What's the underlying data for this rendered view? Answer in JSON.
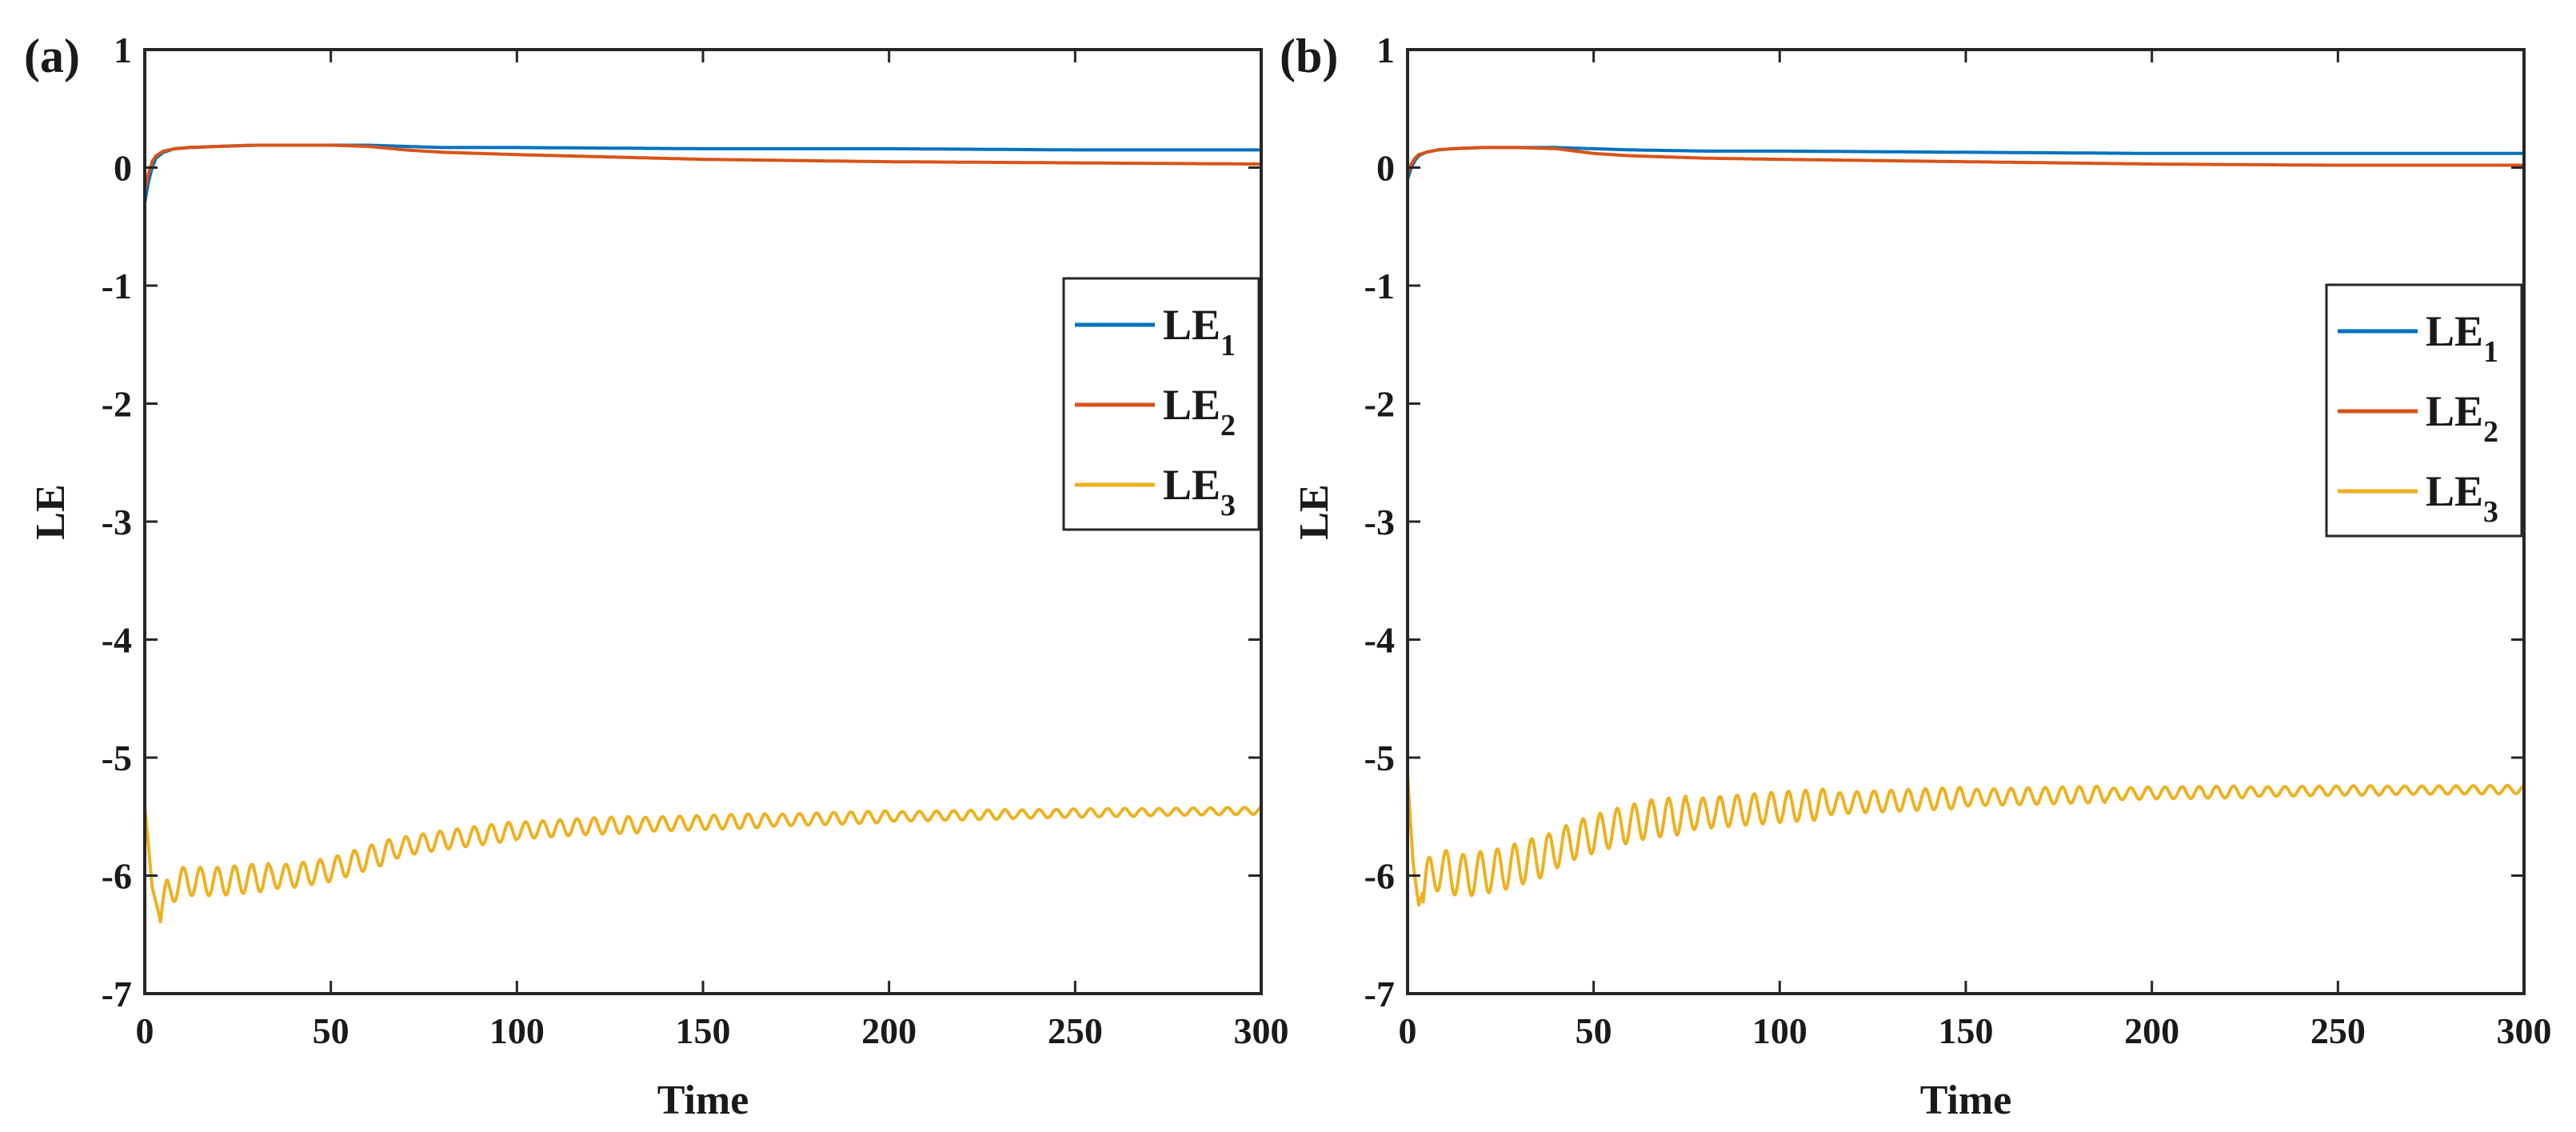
{
  "chart_data": [
    {
      "type": "line",
      "panel_label": "(a)",
      "xlabel": "Time",
      "ylabel": "LE",
      "xlim": [
        0,
        300
      ],
      "ylim": [
        -7,
        1
      ],
      "xticks": [
        0,
        50,
        100,
        150,
        200,
        250,
        300
      ],
      "yticks": [
        -7,
        -6,
        -5,
        -4,
        -3,
        -2,
        -1,
        0,
        1
      ],
      "legend_position": "right",
      "series": [
        {
          "name": "LE",
          "subscript": "1",
          "color": "#0072BD",
          "x": [
            0,
            1,
            2,
            3,
            5,
            8,
            12,
            20,
            30,
            40,
            50,
            60,
            70,
            80,
            100,
            150,
            200,
            250,
            300
          ],
          "y": [
            -0.3,
            -0.12,
            0.0,
            0.08,
            0.13,
            0.16,
            0.17,
            0.18,
            0.19,
            0.19,
            0.19,
            0.19,
            0.18,
            0.17,
            0.17,
            0.16,
            0.16,
            0.15,
            0.15
          ]
        },
        {
          "name": "LE",
          "subscript": "2",
          "color": "#D95319",
          "x": [
            0,
            1,
            2,
            3,
            5,
            8,
            12,
            20,
            30,
            40,
            50,
            60,
            70,
            80,
            100,
            150,
            200,
            250,
            300
          ],
          "y": [
            -0.2,
            -0.05,
            0.05,
            0.1,
            0.14,
            0.16,
            0.17,
            0.18,
            0.19,
            0.19,
            0.19,
            0.18,
            0.15,
            0.13,
            0.11,
            0.07,
            0.05,
            0.04,
            0.03
          ]
        },
        {
          "name": "LE",
          "subscript": "3",
          "color": "#EDB120",
          "x": [
            0,
            2,
            4,
            6,
            10,
            20,
            30,
            40,
            50,
            60,
            70,
            80,
            100,
            120,
            150,
            200,
            250,
            300
          ],
          "y": [
            -5.4,
            -6.1,
            -6.35,
            -6.15,
            -6.05,
            -6.05,
            -6.02,
            -6.0,
            -5.95,
            -5.85,
            -5.75,
            -5.7,
            -5.62,
            -5.58,
            -5.55,
            -5.5,
            -5.47,
            -5.45
          ],
          "oscillation_amplitude": [
            0.12,
            0.1,
            0.08,
            0.07,
            0.06,
            0.05,
            0.04,
            0.035,
            0.03
          ],
          "oscillation_period": 4.6
        }
      ]
    },
    {
      "type": "line",
      "panel_label": "(b)",
      "xlabel": "Time",
      "ylabel": "LE",
      "xlim": [
        0,
        300
      ],
      "ylim": [
        -7,
        1
      ],
      "xticks": [
        0,
        50,
        100,
        150,
        200,
        250,
        300
      ],
      "yticks": [
        -7,
        -6,
        -5,
        -4,
        -3,
        -2,
        -1,
        0,
        1
      ],
      "legend_position": "right",
      "series": [
        {
          "name": "LE",
          "subscript": "1",
          "color": "#0072BD",
          "x": [
            0,
            1,
            2,
            3,
            5,
            8,
            12,
            20,
            30,
            40,
            50,
            60,
            80,
            100,
            150,
            200,
            250,
            300
          ],
          "y": [
            -0.1,
            0.0,
            0.06,
            0.1,
            0.13,
            0.15,
            0.16,
            0.17,
            0.17,
            0.17,
            0.16,
            0.15,
            0.14,
            0.14,
            0.13,
            0.12,
            0.12,
            0.12
          ]
        },
        {
          "name": "LE",
          "subscript": "2",
          "color": "#D95319",
          "x": [
            0,
            1,
            2,
            3,
            5,
            8,
            12,
            20,
            30,
            40,
            50,
            60,
            80,
            100,
            150,
            200,
            250,
            300
          ],
          "y": [
            -0.05,
            0.03,
            0.08,
            0.11,
            0.13,
            0.15,
            0.16,
            0.17,
            0.17,
            0.16,
            0.12,
            0.1,
            0.08,
            0.07,
            0.05,
            0.03,
            0.02,
            0.02
          ]
        },
        {
          "name": "LE",
          "subscript": "3",
          "color": "#EDB120",
          "x": [
            0,
            1.5,
            3,
            5,
            8,
            15,
            25,
            35,
            45,
            55,
            65,
            80,
            100,
            120,
            150,
            200,
            250,
            300
          ],
          "y": [
            -5.15,
            -5.9,
            -6.25,
            -6.05,
            -5.95,
            -6.0,
            -5.95,
            -5.85,
            -5.7,
            -5.6,
            -5.52,
            -5.47,
            -5.42,
            -5.38,
            -5.34,
            -5.3,
            -5.28,
            -5.27
          ],
          "oscillation_amplitude": [
            0.18,
            0.16,
            0.13,
            0.09,
            0.07,
            0.05,
            0.04,
            0.035
          ],
          "oscillation_period": 4.6
        }
      ]
    }
  ]
}
